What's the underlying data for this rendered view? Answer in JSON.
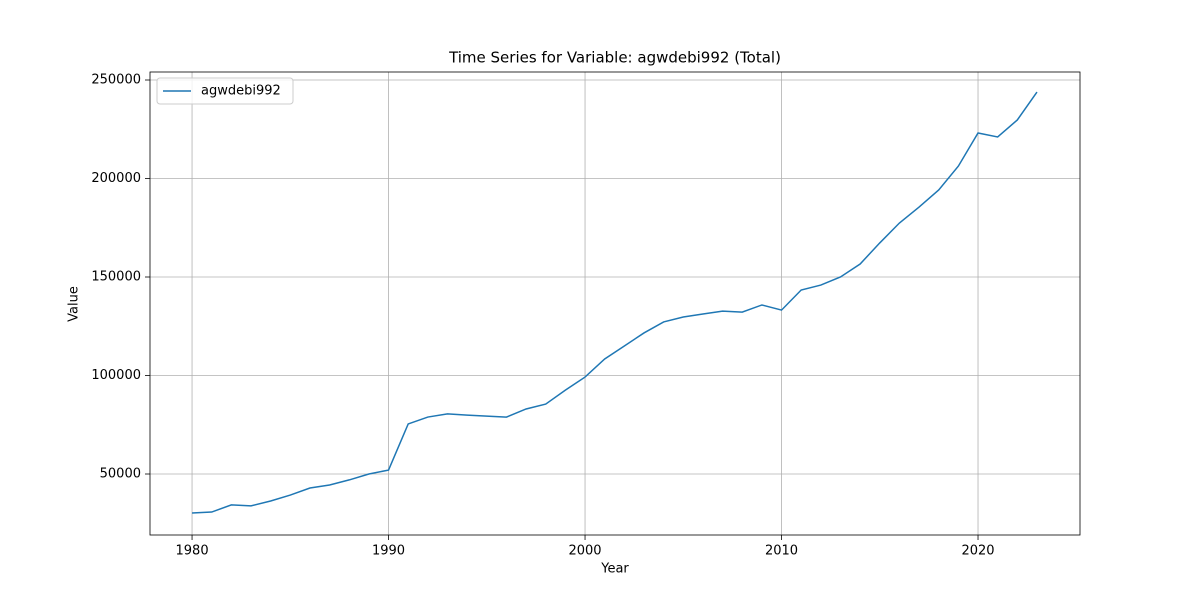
{
  "chart_data": {
    "type": "line",
    "title": "Time Series for Variable: agwdebi992 (Total)",
    "x_label": "Year",
    "y_label": "Value",
    "x": [
      1980,
      1981,
      1982,
      1983,
      1984,
      1985,
      1986,
      1987,
      1988,
      1989,
      1990,
      1991,
      1992,
      1993,
      1994,
      1995,
      1996,
      1997,
      1998,
      1999,
      2000,
      2001,
      2002,
      2003,
      2004,
      2005,
      2006,
      2007,
      2008,
      2009,
      2010,
      2011,
      2012,
      2013,
      2014,
      2015,
      2016,
      2017,
      2018,
      2019,
      2020,
      2021,
      2022,
      2023
    ],
    "series": [
      {
        "name": "agwdebi992",
        "color": "#1f77b4",
        "values": [
          30200,
          30700,
          34300,
          33800,
          36300,
          39300,
          42900,
          44400,
          47000,
          50000,
          52000,
          75400,
          78900,
          80500,
          79900,
          79400,
          78900,
          83000,
          85500,
          92600,
          99200,
          108400,
          115000,
          121600,
          127200,
          129700,
          131200,
          132700,
          132200,
          135800,
          133200,
          143400,
          145900,
          150000,
          156600,
          167300,
          177400,
          185500,
          194200,
          206300,
          223100,
          221100,
          229700,
          243900
        ]
      }
    ],
    "xlim": [
      1977.86,
      2025.19
    ],
    "ylim": [
      19036,
      254061
    ],
    "xticks": [
      1980,
      1990,
      2000,
      2010,
      2020
    ],
    "yticks": [
      50000,
      100000,
      150000,
      200000,
      250000
    ],
    "grid": true,
    "legend": "upper left"
  }
}
